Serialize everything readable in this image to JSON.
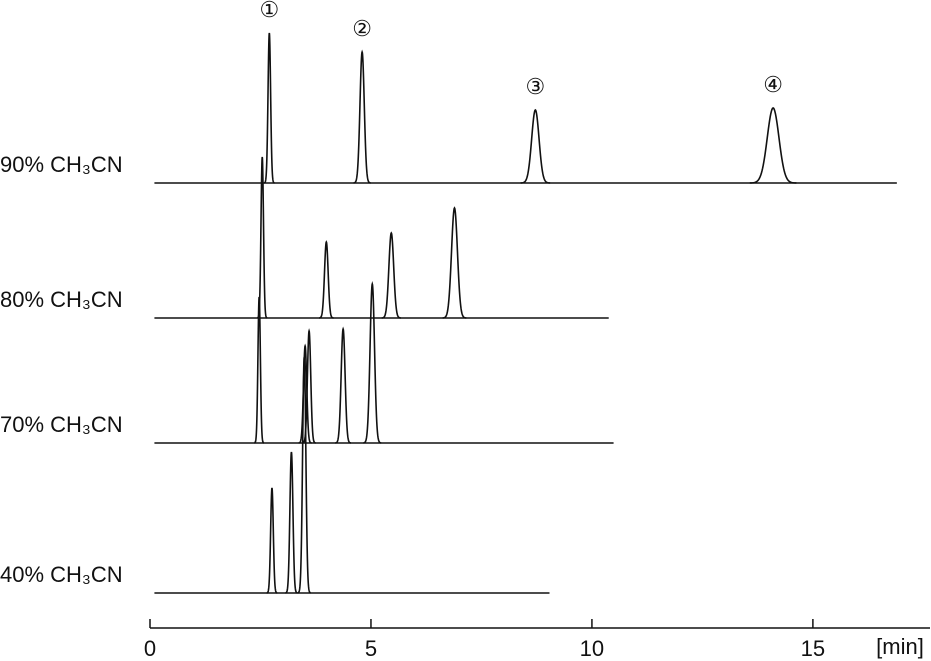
{
  "chart_data": {
    "type": "chromatogram",
    "xlabel": "[min]",
    "xlim": [
      0,
      17.65
    ],
    "xticks": [
      0,
      5,
      10,
      15
    ],
    "ylim": [
      0,
      160
    ],
    "series": [
      {
        "name": "90% CH₃CN",
        "color": "#111111",
        "start": 0.1,
        "end": 16.9,
        "peak_times": [
          2.7,
          4.8,
          8.72,
          14.1
        ],
        "peak_heights": [
          150,
          131,
          73,
          75
        ],
        "peak_labels": [
          "①",
          "②",
          "③",
          "④"
        ]
      },
      {
        "name": "80% CH₃CN",
        "color": "#111111",
        "start": 0.1,
        "end": 10.38,
        "peak_times": [
          2.54,
          3.99,
          5.46,
          6.89
        ],
        "peak_heights": [
          161,
          76,
          85,
          110
        ]
      },
      {
        "name": "70% CH₃CN",
        "color": "#111111",
        "start": 0.1,
        "end": 10.49,
        "peak_times": [
          2.47,
          3.51,
          3.6,
          4.37,
          5.03
        ],
        "peak_heights": [
          146,
          97,
          112,
          114,
          159
        ]
      },
      {
        "name": "40% CH₃CN",
        "color": "#111111",
        "start": 0.1,
        "end": 9.04,
        "peak_times": [
          2.76,
          3.2,
          3.49
        ],
        "peak_heights": [
          105,
          141,
          236
        ]
      }
    ]
  }
}
